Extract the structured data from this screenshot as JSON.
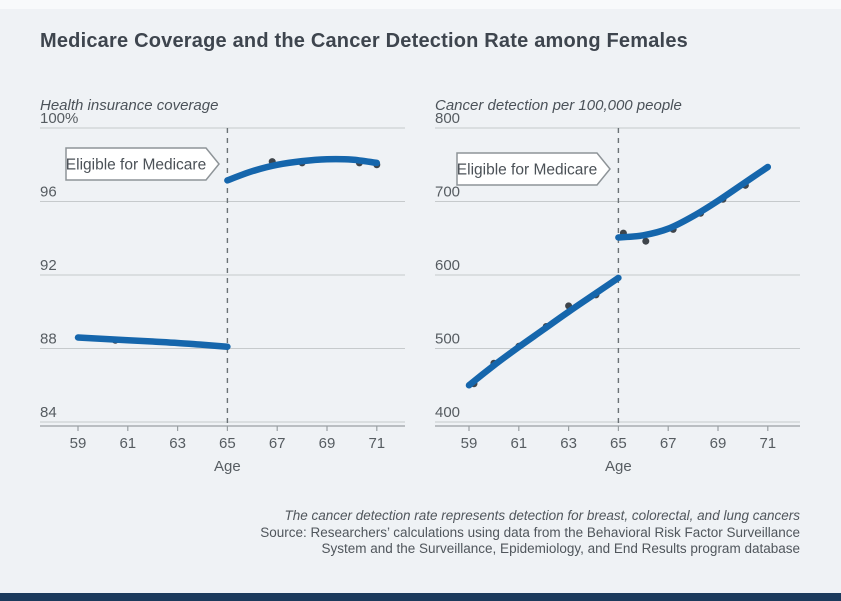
{
  "header": {
    "title": "Medicare Coverage and the Cancer Detection Rate among Females"
  },
  "style": {
    "background": "#eff2f5",
    "title_color": "#3e454e",
    "line_color": "#1566ac",
    "point_color": "#3f454b",
    "gridline_color": "#c6cacc",
    "axis_color": "#9aa0a3",
    "dashed_line_color": "#6b7276",
    "tick_label_color": "#565c61",
    "panel_title_color": "#4b5259",
    "annotation_border_color": "#8e9498",
    "annotation_fill": "#ffffff",
    "annotation_text_color": "#4b5157",
    "footer_text_color": "#50565c",
    "bottom_bar_color": "#1b3a5c"
  },
  "chart_data": [
    {
      "type": "line",
      "panel": "left",
      "title": "Health insurance coverage",
      "xlabel": "Age",
      "ylim": [
        84,
        100
      ],
      "xlim": [
        57.5,
        72.2
      ],
      "grid": true,
      "yticks": [
        {
          "value": 100,
          "label": "100%"
        },
        {
          "value": 96,
          "label": "96"
        },
        {
          "value": 92,
          "label": "92"
        },
        {
          "value": 88,
          "label": "88"
        },
        {
          "value": 84,
          "label": "84"
        }
      ],
      "xticks": [
        59,
        61,
        63,
        65,
        67,
        69,
        71
      ],
      "vline_x": 65,
      "annotation": {
        "label": "Eligible for Medicare"
      },
      "series": [
        {
          "name": "fit-before-65",
          "x": [
            59,
            60,
            61,
            62,
            63,
            64,
            65
          ],
          "y": [
            88.6,
            88.52,
            88.45,
            88.38,
            88.3,
            88.2,
            88.1
          ]
        },
        {
          "name": "fit-after-65",
          "x": [
            65,
            66,
            67,
            68,
            69,
            70,
            71
          ],
          "y": [
            97.15,
            97.65,
            98.0,
            98.2,
            98.3,
            98.28,
            98.1
          ]
        }
      ],
      "points": [
        {
          "x": 60.5,
          "y": 88.45
        },
        {
          "x": 66.8,
          "y": 98.17
        },
        {
          "x": 68.0,
          "y": 98.1
        },
        {
          "x": 70.3,
          "y": 98.1
        },
        {
          "x": 71.0,
          "y": 98.0
        }
      ]
    },
    {
      "type": "line",
      "panel": "right",
      "title": "Cancer detection per 100,000 people",
      "xlabel": "Age",
      "ylim": [
        400,
        800
      ],
      "xlim": [
        57.5,
        72.2
      ],
      "grid": true,
      "yticks": [
        {
          "value": 800,
          "label": "800"
        },
        {
          "value": 700,
          "label": "700"
        },
        {
          "value": 600,
          "label": "600"
        },
        {
          "value": 500,
          "label": "500"
        },
        {
          "value": 400,
          "label": "400"
        }
      ],
      "xticks": [
        59,
        61,
        63,
        65,
        67,
        69,
        71
      ],
      "vline_x": 65,
      "annotation": {
        "label": "Eligible for Medicare"
      },
      "series": [
        {
          "name": "fit-before-65",
          "x": [
            59,
            60,
            61,
            62,
            63,
            64,
            65
          ],
          "y": [
            450,
            477,
            502,
            526,
            550,
            573,
            596
          ]
        },
        {
          "name": "fit-after-65",
          "x": [
            65,
            66,
            67,
            68,
            69,
            70,
            71
          ],
          "y": [
            651,
            654,
            663,
            680,
            701,
            724,
            747
          ]
        }
      ],
      "points": [
        {
          "x": 59.2,
          "y": 452
        },
        {
          "x": 60.0,
          "y": 480
        },
        {
          "x": 61.0,
          "y": 503
        },
        {
          "x": 62.1,
          "y": 530
        },
        {
          "x": 63.0,
          "y": 558
        },
        {
          "x": 64.1,
          "y": 573
        },
        {
          "x": 65.2,
          "y": 657
        },
        {
          "x": 66.1,
          "y": 646
        },
        {
          "x": 67.2,
          "y": 662
        },
        {
          "x": 68.3,
          "y": 684
        },
        {
          "x": 69.2,
          "y": 703
        },
        {
          "x": 70.1,
          "y": 722
        }
      ]
    }
  ],
  "footer": {
    "note": "The cancer detection rate represents detection for breast, colorectal, and lung cancers",
    "source_line_1": "Source: Researchers’ calculations using data from the Behavioral Risk Factor Surveillance",
    "source_line_2": "System and the Surveillance, Epidemiology, and End Results program database"
  }
}
